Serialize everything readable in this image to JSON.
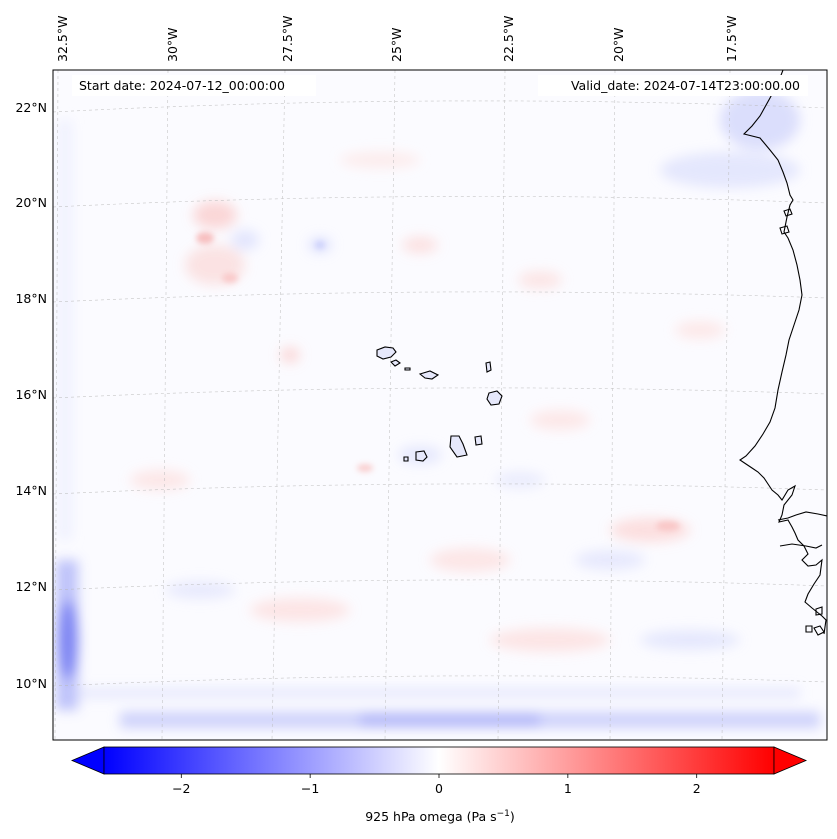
{
  "map": {
    "start_date_text": "Start date: 2024-07-12_00:00:00",
    "valid_date_text": "Valid_date: 2024-07-14T23:00:00.00",
    "lon_labels": [
      "32.5°W",
      "30°W",
      "27.5°W",
      "25°W",
      "22.5°W",
      "20°W",
      "17.5°W"
    ],
    "lat_labels": [
      "22°N",
      "20°N",
      "18°N",
      "16°N",
      "14°N",
      "12°N",
      "10°N"
    ],
    "gridlines": true,
    "features": [
      "Cape Verde islands coastline",
      "West African coastline"
    ]
  },
  "colorbar": {
    "label": "925 hPa omega (Pa s",
    "label_sup": "−1",
    "label_end": ")",
    "ticks": [
      "−2",
      "−1",
      "0",
      "1",
      "2"
    ],
    "tick_values": [
      -2,
      -1,
      0,
      1,
      2
    ],
    "range": [
      -2.6,
      2.6
    ],
    "colormap": "bwr",
    "low_color": "#0000ff",
    "mid_color": "#ffffff",
    "high_color": "#ff0000",
    "extend": "both"
  }
}
